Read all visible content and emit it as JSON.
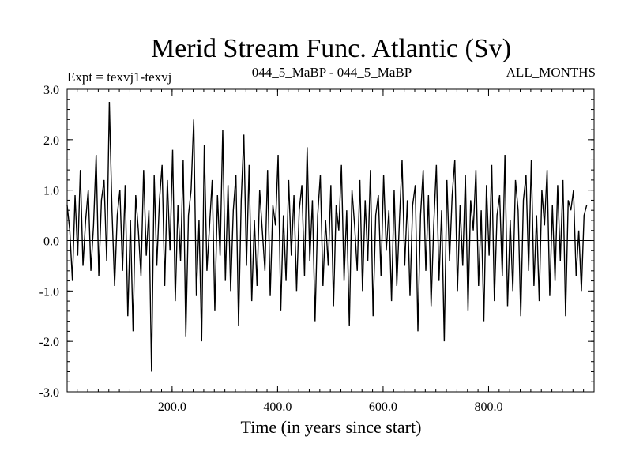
{
  "chart_data": {
    "type": "line",
    "title": "Merid Stream Func. Atlantic (Sv)",
    "subtitle_left": "Expt = texvj1-texvj",
    "subtitle_center": "044_5_MaBP - 044_5_MaBP",
    "subtitle_right": "ALL_MONTHS",
    "xlabel": "Time (in years since start)",
    "ylabel": "",
    "xlim": [
      1,
      1000
    ],
    "ylim": [
      -3.0,
      3.0
    ],
    "x_ticks": [
      200,
      400,
      600,
      800
    ],
    "x_tick_labels": [
      "200.0",
      "400.0",
      "600.0",
      "800.0"
    ],
    "y_ticks": [
      3.0,
      2.0,
      1.0,
      0.0,
      -1.0,
      -2.0,
      -3.0
    ],
    "y_tick_labels": [
      "3.0",
      "2.0",
      "1.0",
      "0.0",
      "-1.0",
      "-2.0",
      "-3.0"
    ],
    "zero_line": true,
    "grid": false,
    "series": [
      {
        "color": "#000000",
        "x_start": 1,
        "x_step": 5,
        "values": [
          0.7,
          0.2,
          -0.8,
          0.9,
          -0.3,
          1.4,
          -0.5,
          0.4,
          1.0,
          -0.6,
          0.3,
          1.7,
          -0.7,
          0.8,
          1.2,
          -0.4,
          2.75,
          0.6,
          -0.9,
          0.5,
          1.0,
          -0.6,
          1.1,
          -1.5,
          0.4,
          -1.8,
          0.9,
          0.2,
          -0.7,
          1.4,
          -0.3,
          0.6,
          -2.6,
          1.3,
          -0.5,
          0.8,
          1.5,
          -0.9,
          1.2,
          -0.2,
          1.8,
          -1.2,
          0.7,
          -0.4,
          1.6,
          -1.9,
          0.5,
          1.0,
          2.4,
          -1.1,
          0.4,
          -2.0,
          1.9,
          -0.6,
          0.3,
          1.2,
          -1.4,
          0.9,
          -0.3,
          2.2,
          -0.8,
          1.1,
          -1.0,
          0.6,
          1.3,
          -1.7,
          0.8,
          2.1,
          -0.5,
          1.5,
          -1.2,
          0.4,
          -0.9,
          1.0,
          0.2,
          -0.6,
          1.4,
          -1.1,
          0.7,
          0.3,
          1.7,
          -1.4,
          0.5,
          -0.8,
          1.2,
          -0.3,
          0.9,
          -1.0,
          0.6,
          1.1,
          -0.7,
          1.85,
          -0.4,
          0.8,
          -1.6,
          0.5,
          1.3,
          -0.9,
          0.4,
          -0.5,
          1.1,
          -1.3,
          0.7,
          0.2,
          1.5,
          -0.8,
          0.6,
          -1.7,
          1.0,
          0.3,
          -0.6,
          1.2,
          -1.0,
          0.8,
          -0.4,
          1.4,
          -1.5,
          0.5,
          0.9,
          -0.7,
          1.3,
          -0.2,
          0.6,
          -1.2,
          1.0,
          -0.9,
          0.4,
          1.6,
          -0.5,
          0.8,
          -1.1,
          0.7,
          1.1,
          -1.8,
          0.5,
          1.4,
          -0.6,
          0.9,
          -1.3,
          0.3,
          1.5,
          -0.8,
          0.6,
          -2.0,
          1.2,
          -0.4,
          0.9,
          1.6,
          -1.0,
          0.7,
          -0.5,
          1.3,
          -1.4,
          0.8,
          0.2,
          1.4,
          -0.9,
          0.6,
          -1.6,
          1.1,
          -0.3,
          1.5,
          -1.2,
          0.5,
          0.9,
          -0.7,
          1.7,
          -1.3,
          0.4,
          -1.0,
          1.2,
          0.6,
          -1.5,
          0.8,
          1.3,
          -0.6,
          1.6,
          -0.9,
          0.5,
          -1.2,
          1.0,
          0.3,
          1.4,
          -1.1,
          0.7,
          -0.8,
          1.1,
          -0.4,
          1.2,
          -1.5,
          0.8,
          0.6,
          1.0,
          -0.7,
          0.2,
          -1.0,
          0.5,
          0.7
        ]
      }
    ]
  }
}
